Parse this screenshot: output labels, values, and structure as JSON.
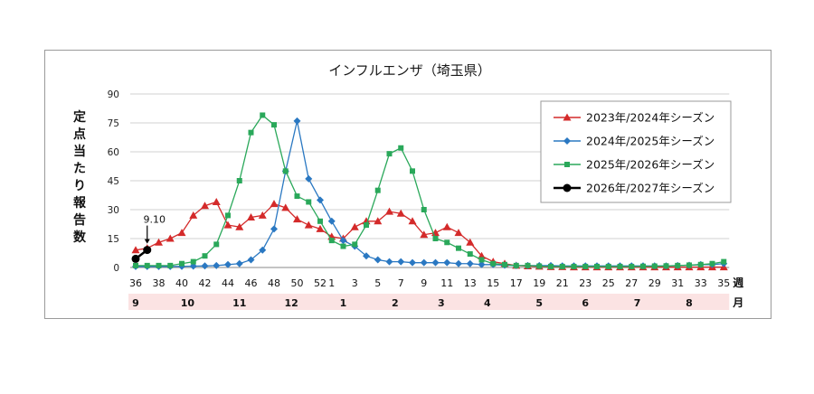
{
  "chart_data": {
    "type": "line",
    "title": "インフルエンザ（埼玉県）",
    "ylabel": "定点当たり報告数",
    "x_unit_label": "週",
    "month_unit_label": "月",
    "ylim": [
      0,
      90
    ],
    "yticks": [
      "0",
      "15",
      "30",
      "45",
      "60",
      "75",
      "90"
    ],
    "grid": "horizontal",
    "legend_position": "top-right",
    "xtick_labels": [
      "36",
      "38",
      "40",
      "42",
      "44",
      "46",
      "48",
      "50",
      "52",
      "1",
      "3",
      "5",
      "7",
      "9",
      "11",
      "13",
      "15",
      "17",
      "19",
      "21",
      "23",
      "25",
      "27",
      "29",
      "31",
      "33",
      "35"
    ],
    "xtick_positions": [
      0,
      2,
      4,
      6,
      8,
      10,
      12,
      14,
      16,
      17,
      19,
      21,
      23,
      25,
      27,
      29,
      31,
      33,
      35,
      37,
      39,
      41,
      43,
      45,
      47,
      49,
      51
    ],
    "months": [
      {
        "label": "9",
        "pos": 0
      },
      {
        "label": "10",
        "pos": 4.5
      },
      {
        "label": "11",
        "pos": 9
      },
      {
        "label": "12",
        "pos": 13.5
      },
      {
        "label": "1",
        "pos": 18
      },
      {
        "label": "2",
        "pos": 22.5
      },
      {
        "label": "3",
        "pos": 26.5
      },
      {
        "label": "4",
        "pos": 30.5
      },
      {
        "label": "5",
        "pos": 35
      },
      {
        "label": "6",
        "pos": 39
      },
      {
        "label": "7",
        "pos": 43.5
      },
      {
        "label": "8",
        "pos": 48
      }
    ],
    "annotation": {
      "text": "9.10",
      "series": 3,
      "index": 1
    },
    "series": [
      {
        "name": "2023年/2024年シーズン",
        "color": "#d42a2a",
        "marker": "triangle",
        "values": [
          9,
          10,
          13,
          15,
          18,
          27,
          32,
          34,
          22,
          21,
          26,
          27,
          33,
          31,
          25,
          22,
          20,
          16,
          15,
          21,
          24,
          24,
          29,
          28,
          24,
          17,
          18,
          21,
          18,
          13,
          6,
          3,
          2,
          1,
          0.7,
          0.5,
          0.3,
          0.3,
          0.2,
          0.2,
          0.2,
          0.2,
          0.2,
          0.2,
          0.2,
          0.2,
          0.2,
          0.2,
          0.2,
          0.2,
          0.2,
          0.2
        ]
      },
      {
        "name": "2024年/2025年シーズン",
        "color": "#2a78c2",
        "marker": "diamond",
        "values": [
          0.5,
          0.5,
          0.5,
          0.5,
          0.6,
          0.7,
          0.8,
          1,
          1.5,
          2,
          4,
          9,
          20,
          50,
          76,
          46,
          35,
          24,
          14,
          11,
          6,
          4,
          3,
          3,
          2.5,
          2.5,
          2.5,
          2.5,
          2,
          2,
          1.5,
          1.5,
          1.2,
          1,
          1,
          1,
          1,
          0.8,
          0.8,
          0.8,
          0.8,
          0.8,
          0.8,
          0.8,
          0.8,
          0.8,
          0.8,
          1,
          1.2,
          1.5,
          1.5,
          2
        ]
      },
      {
        "name": "2025年/2026年シーズン",
        "color": "#2aa85a",
        "marker": "square",
        "values": [
          1,
          1,
          1,
          1,
          2,
          3,
          6,
          12,
          27,
          45,
          70,
          79,
          74,
          50,
          37,
          34,
          24,
          14,
          11,
          12,
          22,
          40,
          59,
          62,
          50,
          30,
          15,
          13,
          10,
          7,
          4,
          2,
          1.5,
          1,
          1,
          0.7,
          0.5,
          0.5,
          0.5,
          0.5,
          0.5,
          0.5,
          0.5,
          0.5,
          0.6,
          0.7,
          0.8,
          1,
          1.2,
          1.5,
          2,
          3
        ]
      },
      {
        "name": "2026年/2027年シーズン",
        "color": "#000000",
        "marker": "circle",
        "values": [
          4.5,
          9.1
        ]
      }
    ]
  }
}
